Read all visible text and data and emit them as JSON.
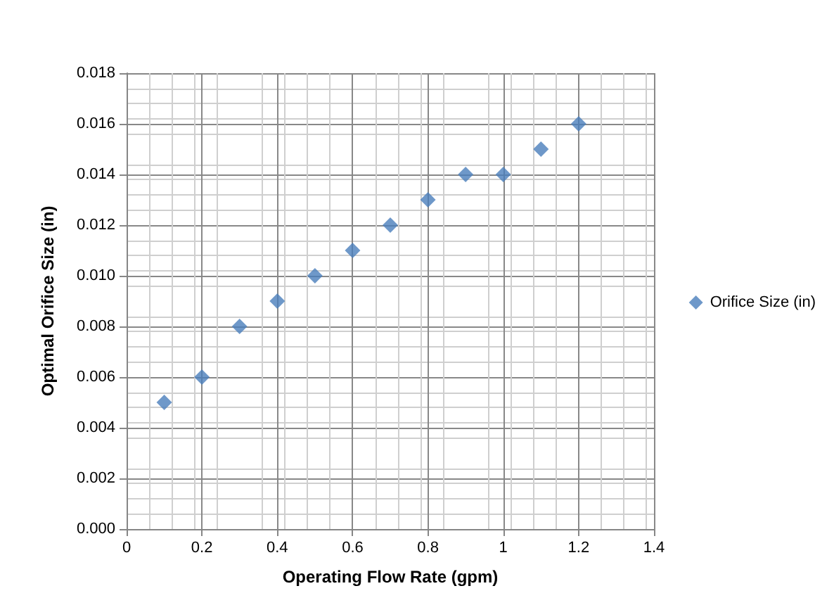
{
  "chart_data": {
    "type": "scatter",
    "xlabel": "Operating Flow Rate (gpm)",
    "ylabel": "Optimal Orifice Size (in)",
    "x": [
      0.1,
      0.2,
      0.3,
      0.4,
      0.5,
      0.6,
      0.7,
      0.8,
      0.9,
      1.0,
      1.1,
      1.2
    ],
    "series": [
      {
        "name": "Orifice Size (in)",
        "color": "#4a7ebb",
        "values": [
          0.005,
          0.006,
          0.008,
          0.009,
          0.01,
          0.011,
          0.012,
          0.013,
          0.014,
          0.014,
          0.015,
          0.016
        ]
      }
    ],
    "xlim": [
      0,
      1.4
    ],
    "xticks": [
      0,
      0.2,
      0.4,
      0.6,
      0.8,
      1,
      1.2,
      1.4
    ],
    "ylim": [
      0,
      0.018
    ],
    "yticks": [
      {
        "value": 0,
        "label": "0.000"
      },
      {
        "value": 0.002,
        "label": "0.002"
      },
      {
        "value": 0.004,
        "label": "0.004"
      },
      {
        "value": 0.006,
        "label": "0.006"
      },
      {
        "value": 0.008,
        "label": "0.008"
      },
      {
        "value": 0.01,
        "label": "0.010"
      },
      {
        "value": 0.012,
        "label": "0.012"
      },
      {
        "value": 0.014,
        "label": "0.014"
      },
      {
        "value": 0.016,
        "label": "0.016"
      },
      {
        "value": 0.018,
        "label": "0.018"
      }
    ],
    "grid": true,
    "legend": "right",
    "marker": "diamond"
  }
}
